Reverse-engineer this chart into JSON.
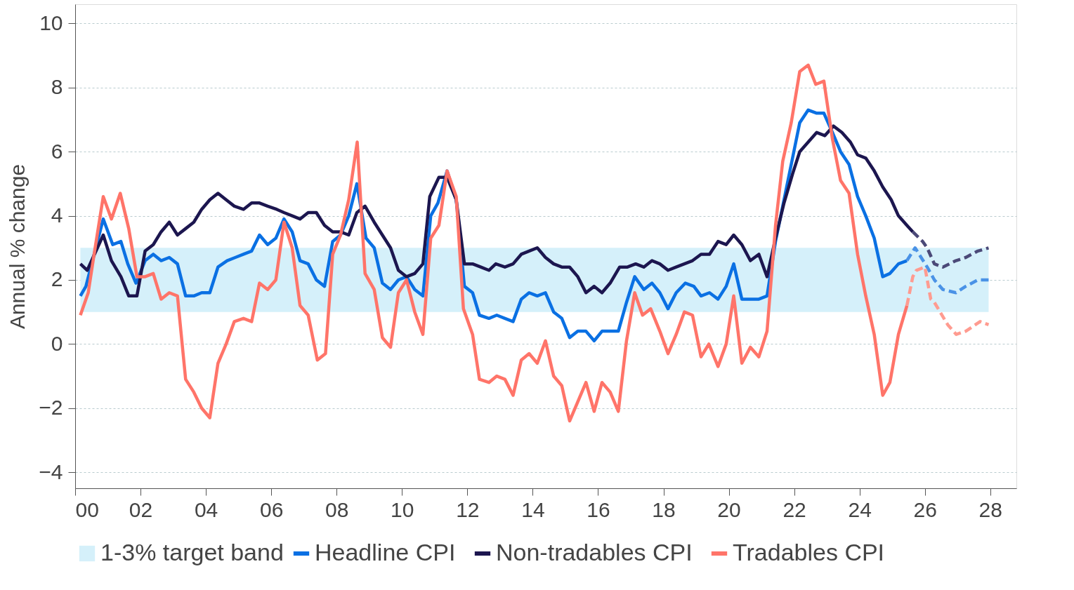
{
  "chart_data": {
    "type": "line",
    "ylabel": "Annual % change",
    "xlim": [
      0,
      28.8
    ],
    "ylim": [
      -4.5,
      10.6
    ],
    "xticks": [
      {
        "value": 0,
        "label": "00"
      },
      {
        "value": 2,
        "label": "02"
      },
      {
        "value": 4,
        "label": "04"
      },
      {
        "value": 6,
        "label": "06"
      },
      {
        "value": 8,
        "label": "08"
      },
      {
        "value": 10,
        "label": "10"
      },
      {
        "value": 12,
        "label": "12"
      },
      {
        "value": 14,
        "label": "14"
      },
      {
        "value": 16,
        "label": "16"
      },
      {
        "value": 18,
        "label": "18"
      },
      {
        "value": 20,
        "label": "20"
      },
      {
        "value": 22,
        "label": "22"
      },
      {
        "value": 24,
        "label": "24"
      },
      {
        "value": 26,
        "label": "26"
      },
      {
        "value": 28,
        "label": "28"
      }
    ],
    "yticks": [
      -4,
      -2,
      0,
      2,
      4,
      6,
      8,
      10
    ],
    "grid": "y",
    "legend": "bottom",
    "marker": "none",
    "bands": [
      {
        "axis": "y",
        "from": 1,
        "to": 3,
        "label": "1-3% target band",
        "color": "#d5f0fa"
      }
    ],
    "series": [
      {
        "name": "Headline CPI",
        "color": "#0a70e3",
        "line_style": "solid",
        "x": [
          0.16,
          0.33,
          0.86,
          1.15,
          1.4,
          1.61,
          1.86,
          2.14,
          2.39,
          2.63,
          2.88,
          3.13,
          3.38,
          3.63,
          3.87,
          4.12,
          4.37,
          4.65,
          4.9,
          5.15,
          5.4,
          5.64,
          5.89,
          6.14,
          6.39,
          6.64,
          6.88,
          7.13,
          7.38,
          7.63,
          7.88,
          8.12,
          8.37,
          8.62,
          8.9,
          9.15,
          9.4,
          9.65,
          9.89,
          10.14,
          10.39,
          10.64,
          10.88,
          11.1,
          11.38,
          11.66,
          11.91,
          12.16,
          12.37,
          12.66,
          12.9,
          13.15,
          13.4,
          13.65,
          13.89,
          14.14,
          14.39,
          14.64,
          14.89,
          15.13,
          15.38,
          15.63,
          15.88,
          16.12,
          16.37,
          16.62,
          16.87,
          17.12,
          17.4,
          17.65,
          17.89,
          18.14,
          18.39,
          18.67,
          18.93,
          19.15,
          19.41,
          19.67,
          19.92,
          20.15,
          20.4,
          20.92,
          21.17,
          21.43,
          21.69,
          21.95,
          22.17,
          22.43,
          22.69,
          22.91,
          23.17,
          23.42,
          23.68,
          23.94,
          24.19,
          24.45,
          24.71,
          24.93,
          25.19,
          25.45
        ],
        "values": [
          1.5,
          1.8,
          3.9,
          3.1,
          3.2,
          2.5,
          1.9,
          2.6,
          2.8,
          2.6,
          2.7,
          2.5,
          1.5,
          1.5,
          1.6,
          1.6,
          2.4,
          2.6,
          2.7,
          2.8,
          2.9,
          3.4,
          3.1,
          3.3,
          3.9,
          3.5,
          2.6,
          2.5,
          2.0,
          1.8,
          3.2,
          3.4,
          4.0,
          5.0,
          3.3,
          3.0,
          1.9,
          1.7,
          2.0,
          2.1,
          1.7,
          1.5,
          4.0,
          4.4,
          5.4,
          4.5,
          1.8,
          1.6,
          0.9,
          0.8,
          0.9,
          0.8,
          0.7,
          1.4,
          1.6,
          1.5,
          1.6,
          1.0,
          0.8,
          0.2,
          0.4,
          0.4,
          0.1,
          0.4,
          0.4,
          0.4,
          1.3,
          2.1,
          1.7,
          1.9,
          1.6,
          1.1,
          1.6,
          1.9,
          1.8,
          1.5,
          1.6,
          1.4,
          1.8,
          2.5,
          1.4,
          1.4,
          1.5,
          3.2,
          4.5,
          5.8,
          6.9,
          7.3,
          7.2,
          7.2,
          6.6,
          6.0,
          5.6,
          4.6,
          4.0,
          3.3,
          2.1,
          2.2,
          2.5,
          2.6
        ]
      },
      {
        "color": "#4a92e6",
        "line_style": "dashed",
        "x": [
          25.45,
          25.7,
          26.07,
          26.29,
          26.55,
          26.95,
          27.25,
          27.62,
          27.95
        ],
        "values": [
          2.6,
          3.0,
          2.4,
          2.0,
          1.7,
          1.6,
          1.8,
          2.0,
          2.0
        ]
      },
      {
        "name": "Non-tradables CPI",
        "color": "#1c164f",
        "line_style": "solid",
        "x": [
          0.16,
          0.37,
          0.86,
          1.11,
          1.4,
          1.64,
          1.89,
          2.14,
          2.39,
          2.63,
          2.88,
          3.13,
          3.38,
          3.63,
          3.87,
          4.12,
          4.37,
          4.62,
          4.87,
          5.15,
          5.4,
          5.64,
          5.89,
          6.17,
          6.39,
          6.64,
          6.88,
          7.13,
          7.38,
          7.63,
          7.88,
          8.12,
          8.37,
          8.62,
          8.87,
          9.15,
          9.4,
          9.65,
          9.89,
          10.14,
          10.39,
          10.64,
          10.85,
          11.13,
          11.38,
          11.66,
          11.91,
          12.16,
          12.41,
          12.66,
          12.87,
          13.15,
          13.4,
          13.65,
          13.89,
          14.14,
          14.39,
          14.64,
          14.89,
          15.13,
          15.38,
          15.63,
          15.88,
          16.12,
          16.37,
          16.66,
          16.9,
          17.15,
          17.4,
          17.65,
          17.89,
          18.14,
          18.39,
          18.64,
          18.89,
          19.15,
          19.41,
          19.67,
          19.92,
          20.15,
          20.4,
          20.66,
          20.92,
          21.17,
          21.43,
          21.69,
          21.95,
          22.17,
          22.43,
          22.69,
          22.94,
          23.2,
          23.46,
          23.72,
          23.94,
          24.19,
          24.45,
          24.71,
          24.97,
          25.19,
          25.45,
          25.63
        ],
        "values": [
          2.5,
          2.3,
          3.4,
          2.6,
          2.1,
          1.5,
          1.5,
          2.9,
          3.1,
          3.5,
          3.8,
          3.4,
          3.6,
          3.8,
          4.2,
          4.5,
          4.7,
          4.5,
          4.3,
          4.2,
          4.4,
          4.4,
          4.3,
          4.2,
          4.1,
          4.0,
          3.9,
          4.1,
          4.1,
          3.7,
          3.5,
          3.5,
          3.4,
          4.1,
          4.3,
          3.8,
          3.4,
          3.0,
          2.3,
          2.1,
          2.2,
          2.5,
          4.6,
          5.2,
          5.2,
          4.5,
          2.5,
          2.5,
          2.4,
          2.3,
          2.5,
          2.4,
          2.5,
          2.8,
          2.9,
          3.0,
          2.7,
          2.5,
          2.4,
          2.4,
          2.1,
          1.6,
          1.8,
          1.6,
          1.9,
          2.4,
          2.4,
          2.5,
          2.4,
          2.6,
          2.5,
          2.3,
          2.4,
          2.5,
          2.6,
          2.8,
          2.8,
          3.2,
          3.1,
          3.4,
          3.1,
          2.6,
          2.8,
          2.1,
          3.3,
          4.4,
          5.3,
          6.0,
          6.3,
          6.6,
          6.5,
          6.8,
          6.6,
          6.3,
          5.9,
          5.8,
          5.4,
          4.9,
          4.5,
          4.0,
          3.7,
          3.5
        ]
      },
      {
        "color": "#4b4978",
        "line_style": "dashed",
        "x": [
          25.63,
          25.93,
          26.07,
          26.29,
          26.55,
          26.95,
          27.25,
          27.62,
          27.95
        ],
        "values": [
          3.5,
          3.2,
          3.0,
          2.5,
          2.4,
          2.6,
          2.7,
          2.9,
          3.0
        ]
      },
      {
        "name": "Tradables CPI",
        "color": "#ff7469",
        "line_style": "solid",
        "x": [
          0.16,
          0.4,
          0.58,
          0.86,
          1.11,
          1.38,
          1.64,
          1.89,
          2.14,
          2.39,
          2.63,
          2.88,
          3.13,
          3.38,
          3.63,
          3.87,
          4.12,
          4.37,
          4.62,
          4.87,
          5.15,
          5.4,
          5.64,
          5.89,
          6.14,
          6.39,
          6.64,
          6.88,
          7.13,
          7.41,
          7.66,
          7.88,
          8.12,
          8.37,
          8.63,
          8.87,
          9.15,
          9.4,
          9.65,
          9.89,
          10.14,
          10.39,
          10.64,
          10.88,
          11.13,
          11.38,
          11.66,
          11.88,
          12.16,
          12.37,
          12.66,
          12.9,
          13.15,
          13.4,
          13.65,
          13.89,
          14.14,
          14.39,
          14.64,
          14.89,
          15.13,
          15.38,
          15.63,
          15.88,
          16.12,
          16.37,
          16.62,
          16.87,
          17.12,
          17.36,
          17.61,
          17.89,
          18.14,
          18.39,
          18.64,
          18.89,
          19.15,
          19.39,
          19.67,
          19.92,
          20.15,
          20.4,
          20.66,
          20.92,
          21.17,
          21.43,
          21.65,
          21.91,
          22.17,
          22.43,
          22.66,
          22.91,
          23.17,
          23.42,
          23.68,
          23.94,
          24.19,
          24.45,
          24.71,
          24.93,
          25.19,
          25.45
        ],
        "values": [
          0.9,
          1.6,
          2.8,
          4.6,
          3.9,
          4.7,
          3.6,
          2.1,
          2.1,
          2.2,
          1.4,
          1.6,
          1.5,
          -1.1,
          -1.5,
          -2.0,
          -2.3,
          -0.6,
          0.0,
          0.7,
          0.8,
          0.7,
          1.9,
          1.7,
          2.0,
          3.8,
          3.0,
          1.2,
          0.9,
          -0.5,
          -0.3,
          2.8,
          3.4,
          4.5,
          6.3,
          2.2,
          1.7,
          0.2,
          -0.1,
          1.6,
          2.0,
          1.0,
          0.3,
          3.3,
          3.7,
          5.4,
          4.6,
          1.1,
          0.3,
          -1.1,
          -1.2,
          -1.0,
          -1.1,
          -1.6,
          -0.5,
          -0.3,
          -0.6,
          0.1,
          -1.0,
          -1.3,
          -2.4,
          -1.8,
          -1.2,
          -2.1,
          -1.2,
          -1.5,
          -2.1,
          0.1,
          1.6,
          0.9,
          1.1,
          0.4,
          -0.3,
          0.3,
          1.0,
          0.9,
          -0.4,
          0.0,
          -0.7,
          0.0,
          1.5,
          -0.6,
          -0.1,
          -0.4,
          0.4,
          3.7,
          5.7,
          6.9,
          8.5,
          8.7,
          8.1,
          8.2,
          6.4,
          5.1,
          4.7,
          2.8,
          1.5,
          0.3,
          -1.6,
          -1.2,
          0.3,
          1.2
        ]
      },
      {
        "color": "#ff9b90",
        "line_style": "dashed",
        "x": [
          25.45,
          25.63,
          25.74,
          26.0,
          26.18,
          26.29,
          26.7,
          26.96,
          27.25,
          27.69,
          27.95
        ],
        "values": [
          1.2,
          2.1,
          2.3,
          2.4,
          1.4,
          1.3,
          0.6,
          0.3,
          0.4,
          0.7,
          0.6
        ]
      }
    ]
  }
}
